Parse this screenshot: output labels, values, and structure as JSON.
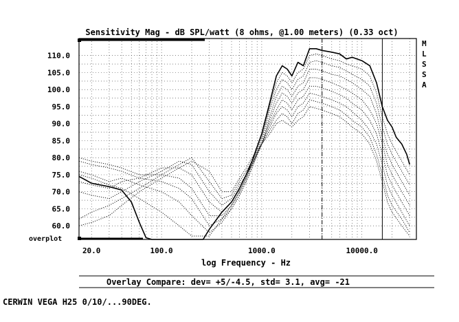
{
  "chart_data": {
    "type": "line",
    "title": "Sensitivity Mag - dB SPL/watt (8 ohms, @1.00 meters) (0.33 oct)",
    "xlabel": "log Frequency - Hz",
    "ylabel": "",
    "x_scale": "log",
    "xlim": [
      15,
      35000
    ],
    "ylim": [
      56,
      115
    ],
    "x_ticks": [
      {
        "value": 20,
        "label": "20.0"
      },
      {
        "value": 100,
        "label": "100.0"
      },
      {
        "value": 1000,
        "label": "1000.0"
      },
      {
        "value": 10000,
        "label": "10000.0"
      }
    ],
    "y_ticks": [
      {
        "value": 110,
        "label": "110.0"
      },
      {
        "value": 105,
        "label": "105.0"
      },
      {
        "value": 100,
        "label": "100.0"
      },
      {
        "value": 95,
        "label": "95.0"
      },
      {
        "value": 90,
        "label": "90.0"
      },
      {
        "value": 85,
        "label": "85.0"
      },
      {
        "value": 80,
        "label": "80.0"
      },
      {
        "value": 75,
        "label": "75.0"
      },
      {
        "value": 70,
        "label": "70.0"
      },
      {
        "value": 65,
        "label": "65.0"
      },
      {
        "value": 60,
        "label": "60.0"
      }
    ],
    "grid": true,
    "markers": [
      4000,
      16000
    ],
    "side_label": "MLSSA",
    "overplot_label": "overplot",
    "stats": "Overlay Compare: dev= +5/-4.5, std= 3.1, avg= -21",
    "series": [
      {
        "style": "solid",
        "x": [
          15,
          20,
          30,
          40,
          50,
          60,
          70,
          80,
          100,
          150,
          200,
          260,
          300,
          400,
          500,
          600,
          700,
          800,
          1000,
          1200,
          1400,
          1600,
          1800,
          2000,
          2300,
          2600,
          3000,
          3500,
          4000,
          5000,
          6000,
          7000,
          8000,
          10000,
          12000,
          14000,
          16000,
          18000,
          20000,
          22000,
          25000,
          28000,
          30000
        ],
        "y": [
          74.5,
          72.5,
          71.5,
          70.5,
          67,
          61,
          56.5,
          56,
          56,
          56,
          56,
          56,
          59,
          64,
          67,
          71,
          75,
          79,
          87,
          96,
          104,
          107,
          106,
          104,
          108,
          107,
          112,
          112,
          111.5,
          111,
          110.5,
          109,
          109.5,
          108.5,
          107,
          102,
          95,
          91,
          89,
          86,
          84,
          81,
          78
        ]
      },
      {
        "style": "dotted",
        "x": [
          15,
          20,
          30,
          40,
          60,
          100,
          150,
          200,
          300,
          400,
          500,
          600,
          700,
          800,
          1000,
          1200,
          1400,
          1600,
          1800,
          2000,
          2300,
          2600,
          3000,
          3500,
          4000,
          5000,
          6000,
          7000,
          8000,
          10000,
          12000,
          14000,
          16000,
          18000,
          20000,
          25000,
          30000
        ],
        "y": [
          75,
          74,
          72,
          71,
          68,
          64,
          60,
          57,
          57,
          62,
          66,
          70,
          74,
          78,
          86,
          95,
          102,
          105,
          104,
          102,
          105,
          106,
          110,
          110.5,
          110,
          109,
          108.5,
          107.5,
          107,
          106,
          104,
          99,
          92,
          87,
          84,
          79,
          75
        ]
      },
      {
        "style": "dotted",
        "x": [
          15,
          20,
          30,
          40,
          60,
          100,
          150,
          200,
          300,
          400,
          500,
          600,
          700,
          800,
          1000,
          1200,
          1400,
          1600,
          1800,
          2000,
          2300,
          2600,
          3000,
          3500,
          4000,
          5000,
          6000,
          7000,
          8000,
          10000,
          12000,
          14000,
          16000,
          18000,
          20000,
          25000,
          30000
        ],
        "y": [
          76,
          75,
          73,
          74,
          72,
          70,
          67,
          63,
          58,
          61,
          65,
          69,
          73,
          77,
          85,
          94,
          100,
          103,
          102,
          100,
          103,
          104,
          108,
          108.5,
          108,
          107,
          106.5,
          105.5,
          104.5,
          103,
          101,
          96,
          89,
          84,
          81,
          76,
          72
        ]
      },
      {
        "style": "dotted",
        "x": [
          15,
          20,
          30,
          40,
          60,
          100,
          150,
          200,
          300,
          400,
          500,
          600,
          700,
          800,
          1000,
          1200,
          1400,
          1600,
          1800,
          2000,
          2300,
          2600,
          3000,
          3500,
          4000,
          5000,
          6000,
          7000,
          8000,
          10000,
          12000,
          14000,
          16000,
          18000,
          20000,
          25000,
          30000
        ],
        "y": [
          79,
          78,
          77,
          76,
          74,
          73,
          71,
          68,
          60,
          62,
          65,
          69,
          73,
          77,
          84,
          92,
          98,
          101,
          100,
          98,
          101,
          102,
          106,
          106,
          105.5,
          104.5,
          104,
          103,
          102,
          100,
          98,
          93,
          86,
          81,
          78,
          73,
          69
        ]
      },
      {
        "style": "dotted",
        "x": [
          15,
          20,
          30,
          40,
          60,
          100,
          150,
          200,
          300,
          400,
          500,
          600,
          700,
          800,
          1000,
          1200,
          1400,
          1600,
          1800,
          2000,
          2300,
          2600,
          3000,
          3500,
          4000,
          5000,
          6000,
          7000,
          8000,
          10000,
          12000,
          14000,
          16000,
          18000,
          20000,
          25000,
          30000
        ],
        "y": [
          80,
          79,
          78,
          77,
          75,
          75,
          74,
          71,
          63,
          63,
          66,
          70,
          74,
          78,
          84,
          91,
          96,
          99,
          98,
          96,
          99,
          100,
          103.5,
          103.5,
          103,
          102,
          101,
          100,
          99,
          97,
          94,
          90,
          84,
          78,
          75,
          70,
          66
        ]
      },
      {
        "style": "dotted",
        "x": [
          15,
          20,
          30,
          40,
          60,
          100,
          150,
          200,
          300,
          400,
          500,
          600,
          700,
          800,
          1000,
          1200,
          1400,
          1600,
          1800,
          2000,
          2300,
          2600,
          3000,
          3500,
          4000,
          5000,
          6000,
          7000,
          8000,
          10000,
          12000,
          14000,
          16000,
          18000,
          20000,
          25000,
          30000
        ],
        "y": [
          73,
          72,
          71,
          73,
          74,
          77,
          77,
          75,
          67,
          64,
          67,
          71,
          75,
          78,
          84,
          90,
          94,
          97,
          96,
          94,
          97,
          98,
          101,
          101,
          100.5,
          99.5,
          98.5,
          97.5,
          96,
          94,
          91,
          87,
          81,
          75,
          72,
          67,
          63
        ]
      },
      {
        "style": "dotted",
        "x": [
          15,
          20,
          30,
          40,
          60,
          100,
          150,
          200,
          300,
          400,
          500,
          600,
          700,
          800,
          1000,
          1200,
          1400,
          1600,
          1800,
          2000,
          2300,
          2600,
          3000,
          3500,
          4000,
          5000,
          6000,
          7000,
          8000,
          10000,
          12000,
          14000,
          16000,
          18000,
          20000,
          25000,
          30000
        ],
        "y": [
          70,
          69,
          68,
          70,
          73,
          76,
          79,
          78,
          70,
          66,
          68,
          72,
          75,
          78,
          84,
          89,
          93,
          95,
          94,
          92,
          95,
          96,
          99,
          98.5,
          98,
          97,
          96,
          95,
          93.5,
          91,
          88,
          84,
          78,
          72,
          69,
          64,
          60
        ]
      },
      {
        "style": "dotted",
        "x": [
          15,
          20,
          30,
          40,
          60,
          100,
          150,
          200,
          300,
          400,
          500,
          600,
          700,
          800,
          1000,
          1200,
          1400,
          1600,
          1800,
          2000,
          2300,
          2600,
          3000,
          3500,
          4000,
          5000,
          6000,
          7000,
          8000,
          10000,
          12000,
          14000,
          16000,
          18000,
          20000,
          25000,
          30000
        ],
        "y": [
          62,
          64,
          66,
          68,
          71,
          75,
          78,
          80,
          73,
          68,
          69,
          73,
          76,
          79,
          84,
          88,
          91,
          93,
          92,
          90,
          93,
          94,
          97,
          96.5,
          96,
          95,
          94,
          92.5,
          91,
          89,
          86,
          81,
          75,
          69,
          66,
          62,
          58
        ]
      },
      {
        "style": "dotted",
        "x": [
          15,
          20,
          30,
          40,
          60,
          100,
          150,
          200,
          300,
          400,
          500,
          600,
          700,
          800,
          1000,
          1200,
          1400,
          1600,
          1800,
          2000,
          2300,
          2600,
          3000,
          3500,
          4000,
          5000,
          6000,
          7000,
          8000,
          10000,
          12000,
          14000,
          16000,
          18000,
          20000,
          25000,
          30000
        ],
        "y": [
          60,
          61,
          63,
          66,
          70,
          74,
          77,
          79,
          76,
          70,
          70,
          74,
          77,
          80,
          84,
          87,
          90,
          91,
          90,
          89,
          91,
          92,
          95,
          94.5,
          94,
          93,
          92,
          90.5,
          89,
          87,
          84,
          79,
          73,
          67,
          64,
          60,
          57
        ]
      }
    ]
  },
  "caption": "CERWIN VEGA H25 0/10/...90DEG."
}
